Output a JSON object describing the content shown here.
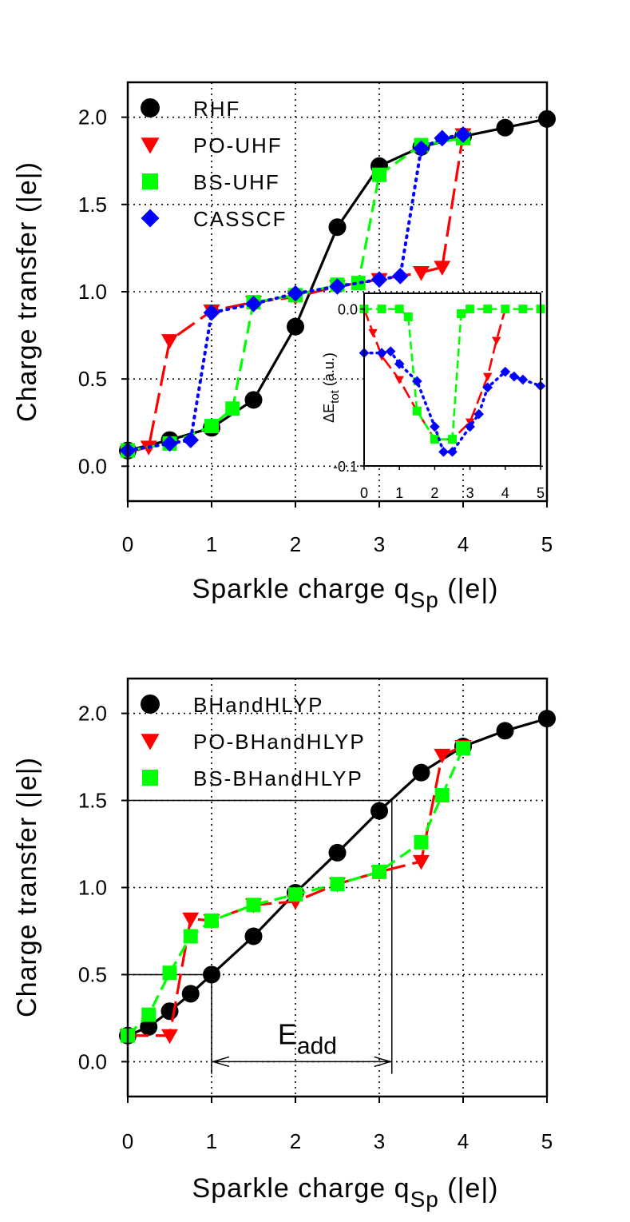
{
  "figure": {
    "eadd_label": "E",
    "eadd_sub": "add"
  },
  "chart_data": [
    {
      "type": "line",
      "panel": "top",
      "xlabel": "Sparkle charge q",
      "xlabel_sub": "Sp",
      "xlabel_suffix": " (|e|)",
      "ylabel": "Charge transfer (|e|)",
      "xlim": [
        0,
        5
      ],
      "ylim": [
        -0.2,
        2.2
      ],
      "xticks": [
        0,
        1,
        2,
        3,
        4,
        5
      ],
      "xtick_labels": [
        "0",
        "1",
        "2",
        "3",
        "4",
        "5"
      ],
      "yticks": [
        0.0,
        0.5,
        1.0,
        1.5,
        2.0
      ],
      "ytick_labels": [
        "0.0",
        "0.5",
        "1.0",
        "1.5",
        "2.0"
      ],
      "grid": "dotted at ticks",
      "legend": "top-left",
      "series": [
        {
          "name": "RHF",
          "color": "#000000",
          "marker": "circle",
          "dash": "solid",
          "x": [
            0,
            0.5,
            1.0,
            1.5,
            2.0,
            2.5,
            3.0,
            3.5,
            4.0,
            4.5,
            5.0
          ],
          "y": [
            0.09,
            0.15,
            0.22,
            0.38,
            0.8,
            1.37,
            1.72,
            1.83,
            1.89,
            1.94,
            1.99
          ]
        },
        {
          "name": "PO-UHF",
          "color": "#ff0000",
          "marker": "triangle-down",
          "dash": "long-dash",
          "x": [
            0,
            0.25,
            0.5,
            1.0,
            1.5,
            2.0,
            2.5,
            3.0,
            3.5,
            3.75,
            4.0
          ],
          "y": [
            0.08,
            0.11,
            0.72,
            0.89,
            0.94,
            0.97,
            1.03,
            1.07,
            1.11,
            1.14,
            1.9
          ]
        },
        {
          "name": "BS-UHF",
          "color": "#00ff00",
          "marker": "square",
          "dash": "dash",
          "x": [
            0,
            0.5,
            1.0,
            1.25,
            1.5,
            2.0,
            2.5,
            2.75,
            3.0,
            3.5,
            4.0
          ],
          "y": [
            0.09,
            0.13,
            0.23,
            0.33,
            0.94,
            0.98,
            1.04,
            1.05,
            1.67,
            1.84,
            1.88
          ]
        },
        {
          "name": "CASSCF",
          "color": "#0000ff",
          "marker": "diamond",
          "dash": "dotted",
          "x": [
            0,
            0.5,
            0.75,
            1.0,
            1.5,
            2.0,
            2.5,
            3.0,
            3.25,
            3.5,
            3.75,
            4.0
          ],
          "y": [
            0.09,
            0.13,
            0.15,
            0.88,
            0.93,
            0.99,
            1.03,
            1.07,
            1.09,
            1.82,
            1.88,
            1.9
          ]
        }
      ],
      "inset": {
        "ylabel": "ΔE",
        "ylabel_sub": "tot",
        "ylabel_suffix": " (a.u.)",
        "xlim": [
          0,
          5
        ],
        "ylim": [
          -0.1,
          0.01
        ],
        "xticks": [
          0,
          1,
          2,
          3,
          4,
          5
        ],
        "xtick_labels": [
          "0",
          "1",
          "2",
          "3",
          "4",
          "5"
        ],
        "yticks": [
          0.0,
          -0.1
        ],
        "ytick_labels": [
          "0.0",
          "-0.1"
        ],
        "series": [
          {
            "name": "PO-UHF",
            "color": "#ff0000",
            "marker": "triangle-down",
            "dash": "long-dash",
            "x": [
              0,
              0.25,
              0.5,
              1.0,
              1.5,
              2.0,
              2.5,
              3.0,
              3.5,
              3.75,
              4.0
            ],
            "y": [
              0.0,
              -0.015,
              -0.03,
              -0.045,
              -0.065,
              -0.083,
              -0.083,
              -0.072,
              -0.043,
              -0.02,
              0.0
            ]
          },
          {
            "name": "BS-UHF",
            "color": "#00ff00",
            "marker": "square",
            "dash": "dash",
            "x": [
              0,
              0.5,
              1.0,
              1.25,
              1.5,
              2.0,
              2.5,
              2.75,
              3.0,
              3.5,
              4.0,
              4.5,
              5.0
            ],
            "y": [
              0.0,
              0.0,
              0.0,
              -0.005,
              -0.065,
              -0.083,
              -0.083,
              -0.003,
              0.0,
              0.0,
              0.0,
              0.0,
              0.0
            ]
          },
          {
            "name": "CASSCF",
            "color": "#0000ff",
            "marker": "diamond",
            "dash": "dotted",
            "x": [
              0,
              0.5,
              0.75,
              1.0,
              1.5,
              2.0,
              2.25,
              2.5,
              3.0,
              3.25,
              3.5,
              4.0,
              4.25,
              4.5,
              5.0
            ],
            "y": [
              -0.028,
              -0.028,
              -0.027,
              -0.035,
              -0.046,
              -0.075,
              -0.091,
              -0.091,
              -0.075,
              -0.067,
              -0.05,
              -0.04,
              -0.043,
              -0.045,
              -0.049
            ]
          }
        ]
      }
    },
    {
      "type": "line",
      "panel": "bottom",
      "xlabel": "Sparkle charge q",
      "xlabel_sub": "Sp",
      "xlabel_suffix": " (|e|)",
      "ylabel": "Charge transfer (|e|)",
      "xlim": [
        0,
        5
      ],
      "ylim": [
        -0.2,
        2.2
      ],
      "xticks": [
        0,
        1,
        2,
        3,
        4,
        5
      ],
      "xtick_labels": [
        "0",
        "1",
        "2",
        "3",
        "4",
        "5"
      ],
      "yticks": [
        0.0,
        0.5,
        1.0,
        1.5,
        2.0
      ],
      "ytick_labels": [
        "0.0",
        "0.5",
        "1.0",
        "1.5",
        "2.0"
      ],
      "grid": "dotted at ticks",
      "legend": "top-left",
      "series": [
        {
          "name": "BHandHLYP",
          "color": "#000000",
          "marker": "circle",
          "dash": "solid",
          "x": [
            0,
            0.25,
            0.5,
            0.75,
            1.0,
            1.5,
            2.0,
            2.5,
            3.0,
            3.5,
            4.0,
            4.5,
            5.0
          ],
          "y": [
            0.15,
            0.2,
            0.29,
            0.39,
            0.5,
            0.72,
            0.97,
            1.2,
            1.44,
            1.66,
            1.81,
            1.9,
            1.97
          ]
        },
        {
          "name": "PO-BHandHLYP",
          "color": "#ff0000",
          "marker": "triangle-down",
          "dash": "long-dash",
          "x": [
            0,
            0.5,
            0.75,
            1.0,
            1.5,
            2.0,
            2.5,
            3.0,
            3.5,
            3.75,
            4.0
          ],
          "y": [
            0.15,
            0.15,
            0.82,
            0.81,
            0.9,
            0.92,
            1.02,
            1.09,
            1.15,
            1.76,
            1.81
          ]
        },
        {
          "name": "BS-BHandHLYP",
          "color": "#00ff00",
          "marker": "square",
          "dash": "dash",
          "x": [
            0,
            0.25,
            0.5,
            0.75,
            1.0,
            1.5,
            2.0,
            2.5,
            3.0,
            3.5,
            3.75,
            4.0
          ],
          "y": [
            0.15,
            0.27,
            0.51,
            0.72,
            0.81,
            0.9,
            0.96,
            1.02,
            1.09,
            1.26,
            1.53,
            1.8
          ]
        }
      ],
      "eadd": {
        "x_start": 1.0,
        "x_end": 3.15,
        "y_low": 0.5,
        "y_high": 1.5,
        "arrow_y": 0.0
      }
    }
  ]
}
